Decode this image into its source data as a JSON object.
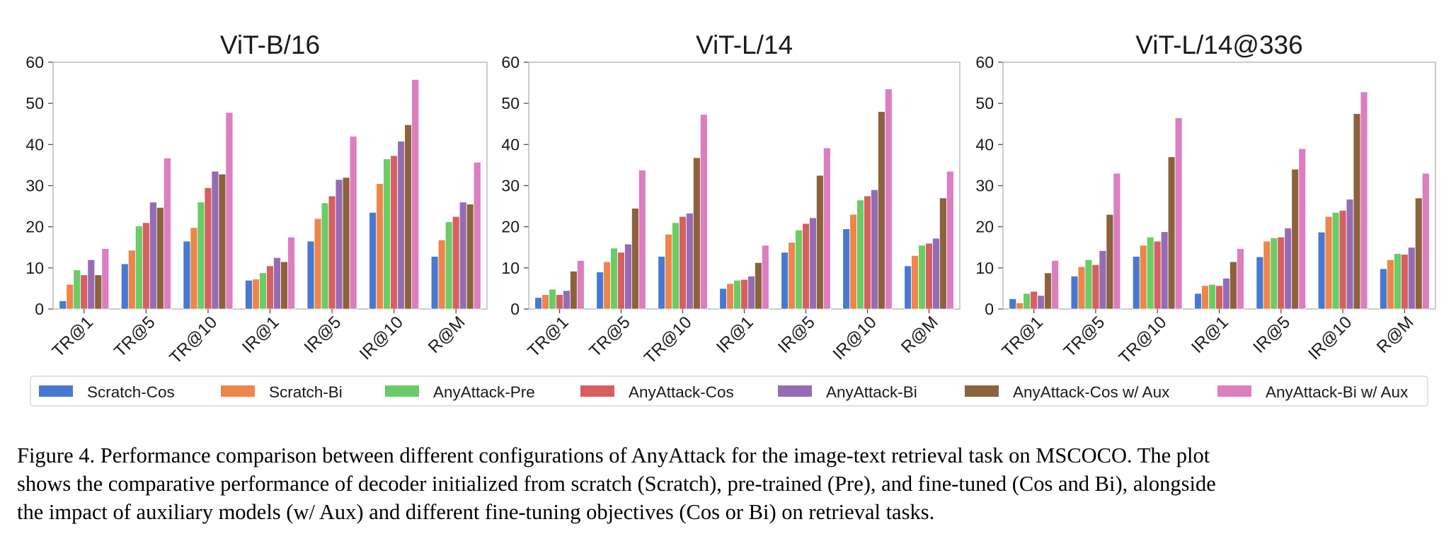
{
  "chart_data": [
    {
      "type": "bar",
      "title": "ViT-B/16",
      "categories": [
        "TR@1",
        "TR@5",
        "TR@10",
        "IR@1",
        "IR@5",
        "IR@10",
        "R@M"
      ],
      "ylim": [
        0,
        60
      ],
      "yticks": [
        0,
        10,
        20,
        30,
        40,
        50,
        60
      ],
      "xlabel": "",
      "ylabel": "",
      "series": [
        {
          "name": "Scratch-Cos",
          "values": [
            2,
            11,
            16.5,
            7,
            16.5,
            23.5,
            12.8
          ]
        },
        {
          "name": "Scratch-Bi",
          "values": [
            6,
            14.3,
            19.8,
            7.3,
            22,
            30.5,
            16.8
          ]
        },
        {
          "name": "AnyAttack-Pre",
          "values": [
            9.5,
            20.2,
            26,
            8.8,
            25.8,
            36.5,
            21.2
          ]
        },
        {
          "name": "AnyAttack-Cos",
          "values": [
            8.3,
            21,
            29.5,
            10.5,
            27.5,
            37.3,
            22.5
          ]
        },
        {
          "name": "AnyAttack-Bi",
          "values": [
            12,
            26,
            33.5,
            12.5,
            31.5,
            40.8,
            26
          ]
        },
        {
          "name": "AnyAttack-Cos w/ Aux",
          "values": [
            8.3,
            24.7,
            32.8,
            11.5,
            32,
            44.8,
            25.5
          ]
        },
        {
          "name": "AnyAttack-Bi w/ Aux",
          "values": [
            14.7,
            36.7,
            47.8,
            17.5,
            42,
            55.8,
            35.7
          ]
        }
      ]
    },
    {
      "type": "bar",
      "title": "ViT-L/14",
      "categories": [
        "TR@1",
        "TR@5",
        "TR@10",
        "IR@1",
        "IR@5",
        "IR@10",
        "R@M"
      ],
      "ylim": [
        0,
        60
      ],
      "yticks": [
        0,
        10,
        20,
        30,
        40,
        50,
        60
      ],
      "xlabel": "",
      "ylabel": "",
      "series": [
        {
          "name": "Scratch-Cos",
          "values": [
            2.8,
            9,
            12.8,
            5,
            13.8,
            19.5,
            10.5
          ]
        },
        {
          "name": "Scratch-Bi",
          "values": [
            3.5,
            11.5,
            18.2,
            6.2,
            16.2,
            23,
            13
          ]
        },
        {
          "name": "AnyAttack-Pre",
          "values": [
            4.8,
            14.8,
            21,
            7,
            19.2,
            26.5,
            15.5
          ]
        },
        {
          "name": "AnyAttack-Cos",
          "values": [
            3.5,
            13.8,
            22.5,
            7.2,
            20.8,
            27.5,
            16
          ]
        },
        {
          "name": "AnyAttack-Bi",
          "values": [
            4.5,
            15.8,
            23.3,
            8,
            22.2,
            29,
            17.2
          ]
        },
        {
          "name": "AnyAttack-Cos w/ Aux",
          "values": [
            9.2,
            24.5,
            36.8,
            11.3,
            32.5,
            48,
            27
          ]
        },
        {
          "name": "AnyAttack-Bi w/ Aux",
          "values": [
            11.8,
            33.8,
            47.3,
            15.5,
            39.2,
            53.5,
            33.5
          ]
        }
      ]
    },
    {
      "type": "bar",
      "title": "ViT-L/14@336",
      "categories": [
        "TR@1",
        "TR@5",
        "TR@10",
        "IR@1",
        "IR@5",
        "IR@10",
        "R@M"
      ],
      "ylim": [
        0,
        60
      ],
      "yticks": [
        0,
        10,
        20,
        30,
        40,
        50,
        60
      ],
      "xlabel": "",
      "ylabel": "",
      "series": [
        {
          "name": "Scratch-Cos",
          "values": [
            2.5,
            8,
            12.8,
            3.8,
            12.7,
            18.7,
            9.8
          ]
        },
        {
          "name": "Scratch-Bi",
          "values": [
            1.5,
            10.3,
            15.5,
            5.7,
            16.5,
            22.5,
            12
          ]
        },
        {
          "name": "AnyAttack-Pre",
          "values": [
            3.8,
            12,
            17.5,
            6,
            17.3,
            23.5,
            13.5
          ]
        },
        {
          "name": "AnyAttack-Cos",
          "values": [
            4.3,
            10.8,
            16.5,
            5.7,
            17.5,
            24,
            13.3
          ]
        },
        {
          "name": "AnyAttack-Bi",
          "values": [
            3.3,
            14.2,
            18.8,
            7.5,
            19.7,
            26.7,
            15
          ]
        },
        {
          "name": "AnyAttack-Cos w/ Aux",
          "values": [
            8.8,
            23,
            37,
            11.5,
            34,
            47.5,
            27
          ]
        },
        {
          "name": "AnyAttack-Bi w/ Aux",
          "values": [
            11.8,
            33,
            46.5,
            14.7,
            39,
            52.8,
            33
          ]
        }
      ]
    }
  ],
  "legend": {
    "position": "bottom",
    "colors": [
      "#4878d0",
      "#ee854a",
      "#6acc64",
      "#d65f5f",
      "#956cb4",
      "#8c613c",
      "#dc7ec0"
    ]
  },
  "caption": {
    "line1": "Figure 4. Performance comparison between different configurations of AnyAttack for the image-text retrieval task on MSCOCO. The plot",
    "line2": "shows the comparative performance of decoder initialized from scratch (Scratch), pre-trained (Pre), and fine-tuned (Cos and Bi), alongside",
    "line3": "the impact of auxiliary models (w/ Aux) and different fine-tuning objectives (Cos or Bi) on retrieval tasks."
  }
}
